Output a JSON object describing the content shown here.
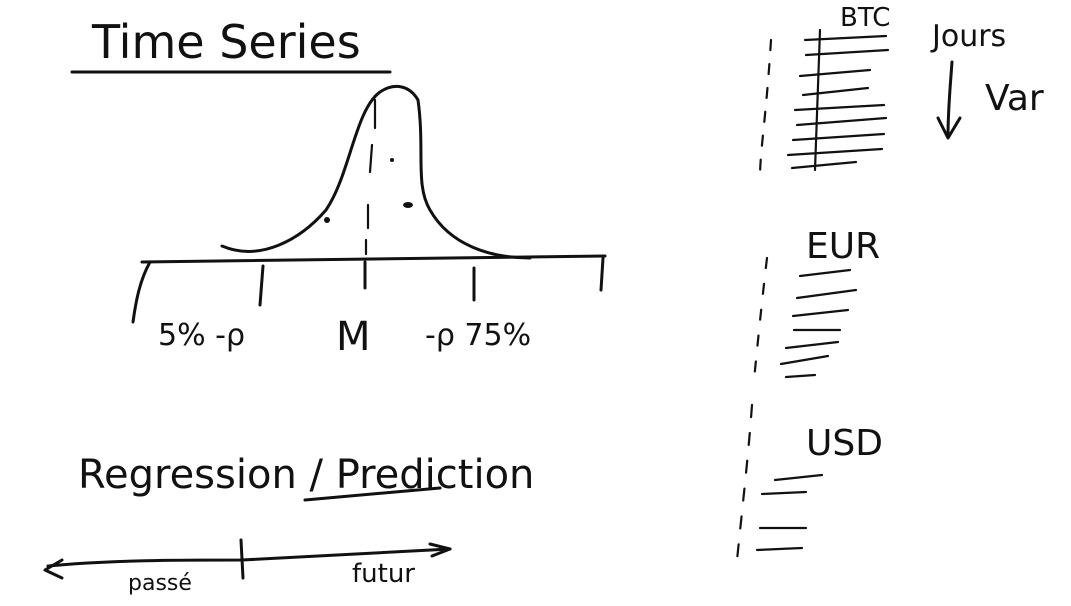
{
  "board": {
    "background": "#ffffff",
    "ink": "#111111"
  },
  "left": {
    "title": "Time Series",
    "axis_labels": {
      "left_tail": "5% -ρ",
      "center": "M",
      "right_tail": "-ρ 75%"
    },
    "regression_heading": "Regression / Prediction",
    "timeline": {
      "past": "passé",
      "future": "futur"
    }
  },
  "right": {
    "top_labels": {
      "currency": "BTC",
      "days": "Jours",
      "var": "Var"
    },
    "groups": [
      {
        "label": "EUR"
      },
      {
        "label": "USD"
      }
    ]
  }
}
